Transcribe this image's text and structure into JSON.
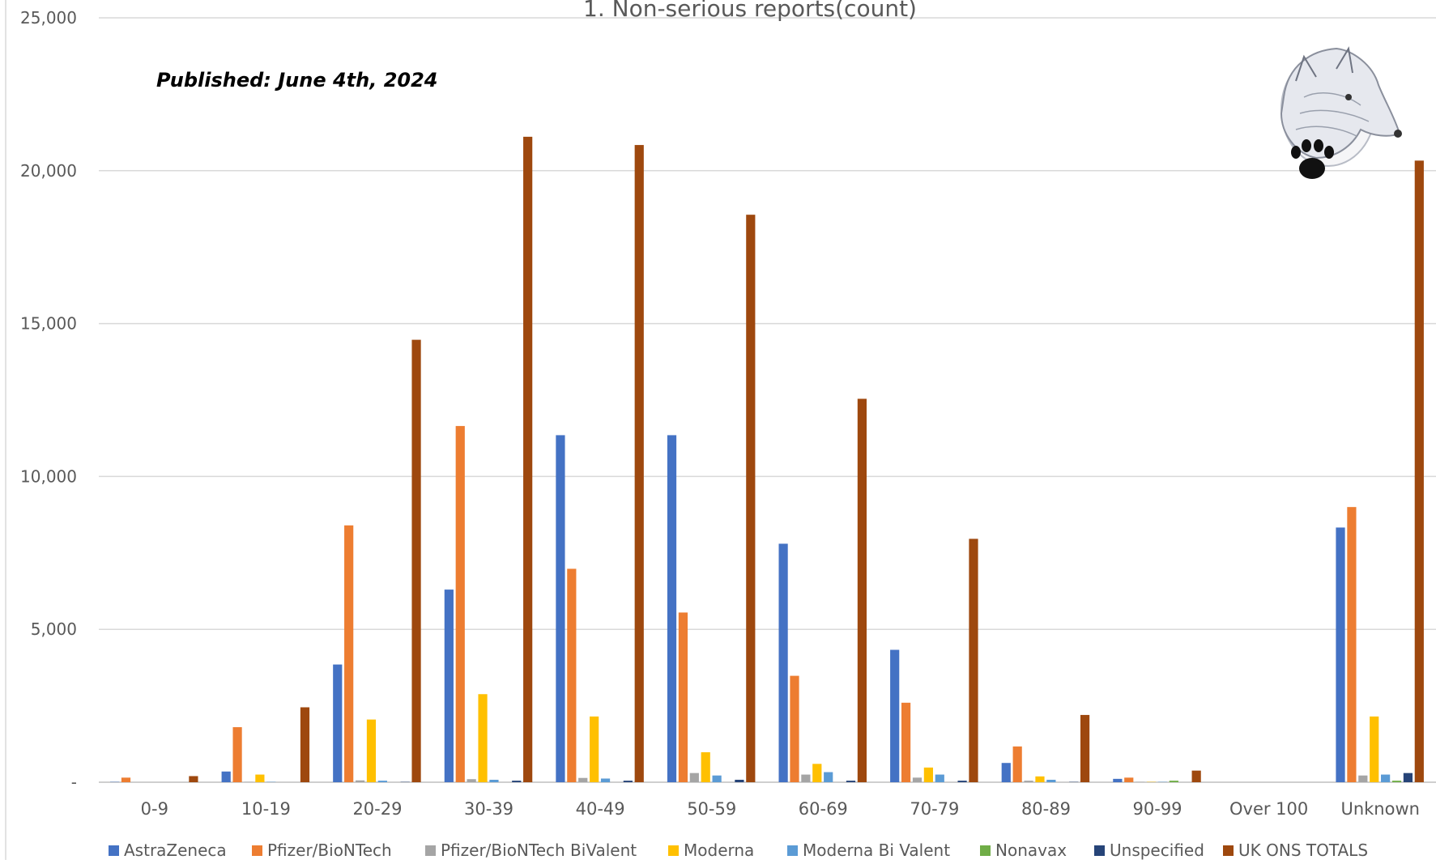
{
  "chart_data": {
    "type": "bar",
    "title": "1. Non-serious reports(count)",
    "annotation": "Published: June 4th, 2024",
    "xlabel": "",
    "ylabel": "",
    "ylim": [
      0,
      25000
    ],
    "yticks": [
      0,
      5000,
      10000,
      15000,
      20000,
      25000
    ],
    "ytick_labels": [
      "-",
      "5,000",
      "10,000",
      "15,000",
      "20,000",
      "25,000"
    ],
    "grid": true,
    "legend_position": "bottom",
    "categories": [
      "0-9",
      "10-19",
      "20-29",
      "30-39",
      "40-49",
      "50-59",
      "60-69",
      "70-79",
      "80-89",
      "90-99",
      "Over 100",
      "Unknown"
    ],
    "series": [
      {
        "name": "AstraZeneca",
        "color": "#4472C4",
        "values": [
          10,
          350,
          3850,
          6300,
          11350,
          11350,
          7800,
          4330,
          630,
          110,
          0,
          8330
        ]
      },
      {
        "name": "Pfizer/BioNTech",
        "color": "#ED7D31",
        "values": [
          150,
          1800,
          8400,
          11650,
          6980,
          5550,
          3480,
          2600,
          1170,
          150,
          0,
          9000
        ]
      },
      {
        "name": "Pfizer/BioNTech BiValent",
        "color": "#A5A5A5",
        "values": [
          0,
          10,
          60,
          100,
          140,
          300,
          250,
          150,
          50,
          10,
          0,
          220
        ]
      },
      {
        "name": "Moderna",
        "color": "#FFC000",
        "values": [
          0,
          250,
          2050,
          2880,
          2150,
          980,
          600,
          480,
          190,
          10,
          0,
          2150
        ]
      },
      {
        "name": "Moderna Bi Valent",
        "color": "#5B9BD5",
        "values": [
          0,
          10,
          50,
          80,
          120,
          220,
          330,
          250,
          80,
          10,
          0,
          250
        ]
      },
      {
        "name": "Nonavax",
        "color": "#70AD47",
        "values": [
          0,
          0,
          0,
          0,
          0,
          0,
          0,
          0,
          0,
          50,
          0,
          50
        ]
      },
      {
        "name": "Unspecified",
        "color": "#264478",
        "values": [
          0,
          0,
          10,
          50,
          50,
          80,
          50,
          50,
          10,
          0,
          0,
          300
        ]
      },
      {
        "name": "UK ONS TOTALS",
        "color": "#9E480E",
        "values": [
          200,
          2450,
          14470,
          21110,
          20840,
          18560,
          12540,
          7960,
          2200,
          380,
          0,
          20330
        ]
      }
    ]
  }
}
